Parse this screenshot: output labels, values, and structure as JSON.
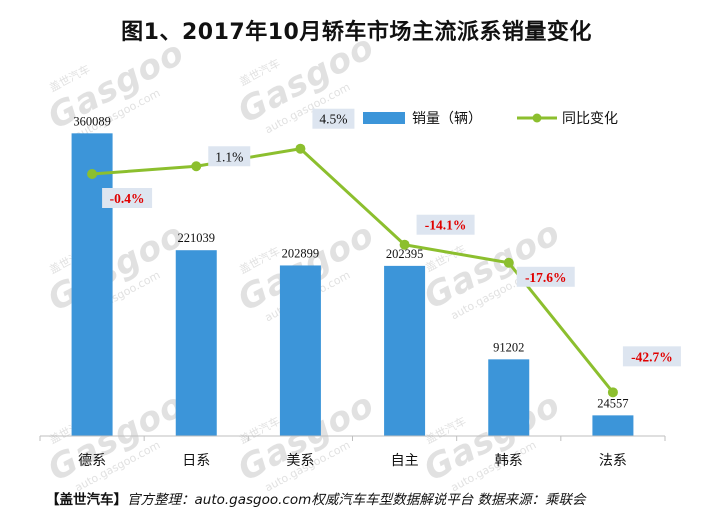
{
  "title": "图1、2017年10月轿车市场主流派系销量变化",
  "watermark": {
    "logo": "Gasgoo",
    "cn": "盖世汽车",
    "url": "auto.gasgoo.com"
  },
  "footer": {
    "brand": "【盖世汽车】",
    "text": "官方整理：auto.gasgoo.com权威汽车车型数据解说平台  数据来源：乘联会"
  },
  "colors": {
    "bar": "#3c95d9",
    "line": "#8cbf2e",
    "neg_label": "#e00000",
    "label_bg": "#dde5f0"
  },
  "chart_data": {
    "type": "bar",
    "categories": [
      "德系",
      "日系",
      "美系",
      "自主",
      "韩系",
      "法系"
    ],
    "series": [
      {
        "name": "销量（辆）",
        "type": "bar",
        "values": [
          360089,
          221039,
          202899,
          202395,
          91202,
          24557
        ],
        "labels": [
          "360089",
          "221039",
          "202899",
          "202395",
          "91202",
          "24557"
        ]
      },
      {
        "name": "同比变化",
        "type": "line",
        "values": [
          -0.4,
          1.1,
          4.5,
          -14.1,
          -17.6,
          -42.7
        ],
        "labels": [
          "-0.4%",
          "1.1%",
          "4.5%",
          "-14.1%",
          "-17.6%",
          "-42.7%"
        ]
      }
    ],
    "ylim_bar": [
      0,
      370000
    ],
    "ylim_line": [
      -50,
      12
    ],
    "legend_position": "top-right",
    "grid": false
  }
}
